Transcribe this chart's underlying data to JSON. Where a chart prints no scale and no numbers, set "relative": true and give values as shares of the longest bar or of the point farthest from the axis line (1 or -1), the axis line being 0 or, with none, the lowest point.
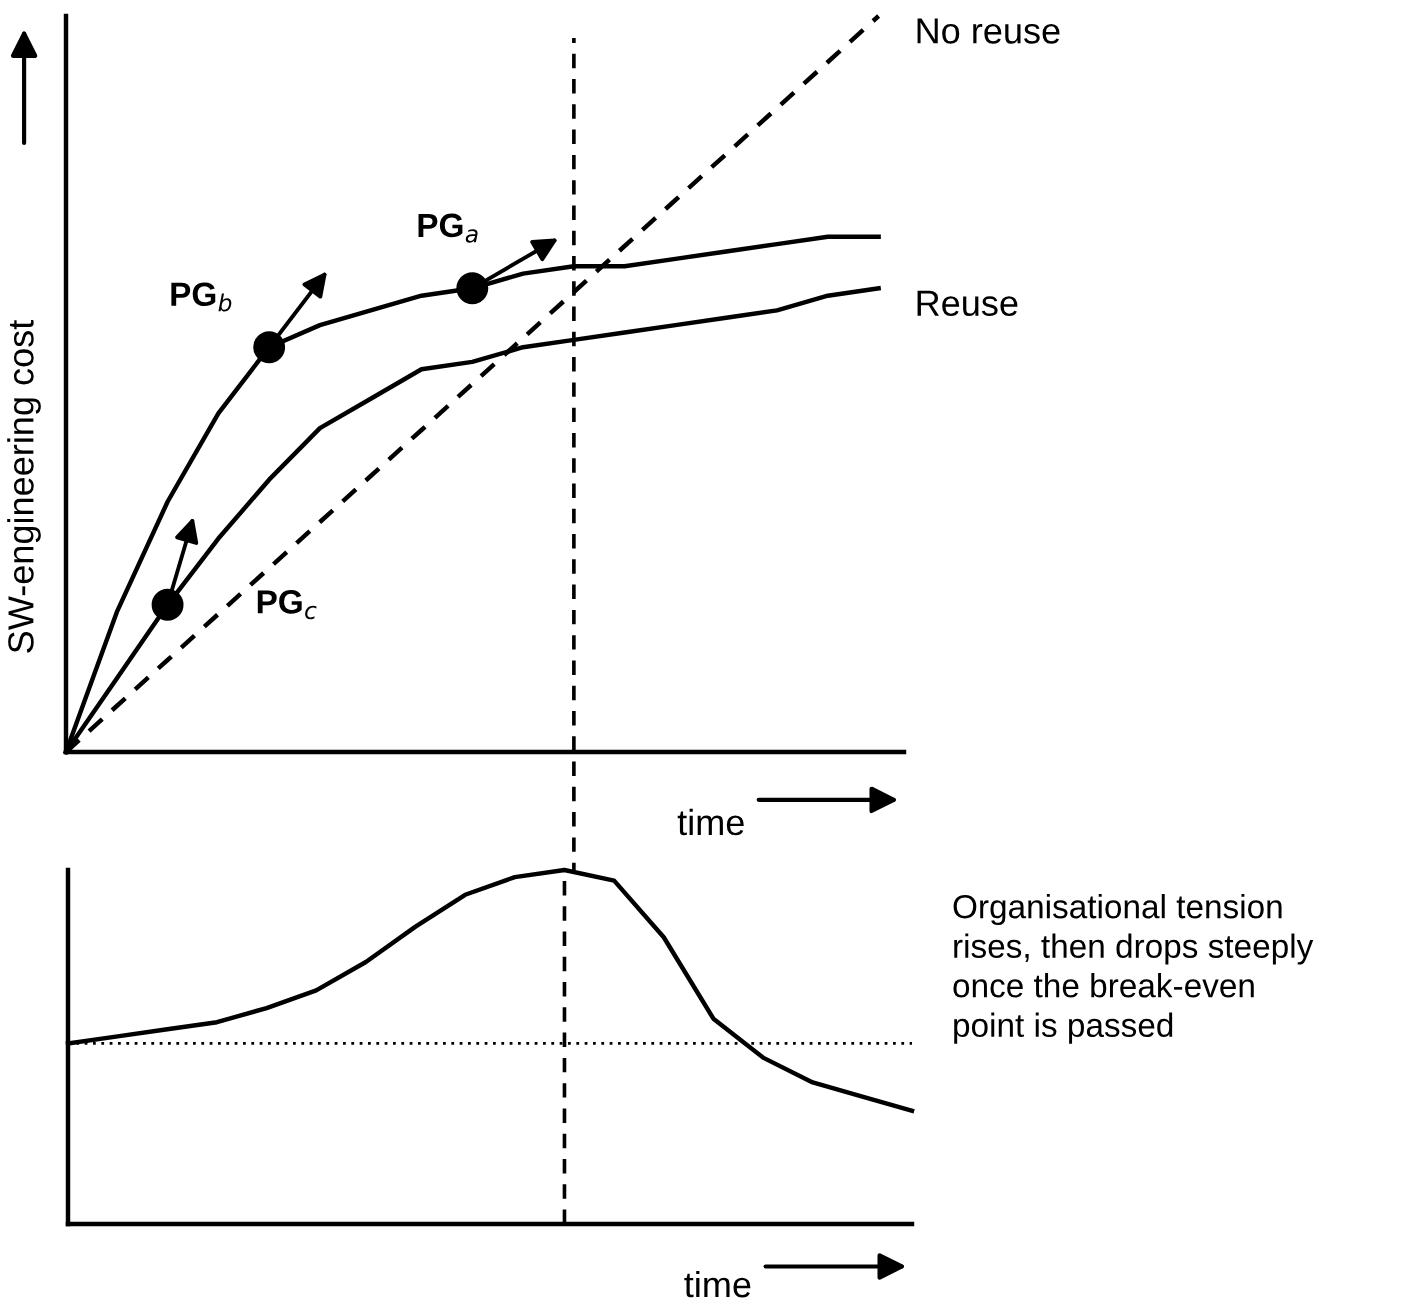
{
  "chart_data": [
    {
      "type": "line",
      "relative": true,
      "xlabel": "time",
      "ylabel": "SW-engineering cost",
      "legend": false,
      "grid": false,
      "categories": [
        null,
        null,
        null,
        null,
        null,
        null,
        null,
        null,
        null,
        null,
        null,
        null,
        null,
        null,
        null,
        null,
        null
      ],
      "series": [
        {
          "name": "No reuse",
          "color": "#000000",
          "line_style": "dashed",
          "values": [
            0,
            0.0625,
            0.125,
            0.1875,
            0.25,
            0.3125,
            0.375,
            0.4375,
            0.5,
            0.5625,
            0.625,
            0.6875,
            0.75,
            0.8125,
            0.875,
            0.9375,
            1
          ]
        },
        {
          "color": "#000000",
          "line_style": "solid",
          "values": [
            0,
            0.19,
            0.34,
            0.46,
            0.55,
            0.58,
            0.6,
            0.62,
            0.63,
            0.65,
            0.66,
            0.66,
            0.67,
            0.68,
            0.69,
            0.7,
            0.7
          ]
        },
        {
          "name": "Reuse",
          "color": "#000000",
          "line_style": "solid",
          "values": [
            0,
            0.1,
            0.2,
            0.29,
            0.37,
            0.44,
            0.48,
            0.52,
            0.53,
            0.55,
            0.56,
            0.57,
            0.58,
            0.59,
            0.6,
            0.62,
            0.63
          ]
        }
      ],
      "annotations": [
        "PG$_{a}$",
        "PG$_{b}$",
        "PG$_{c}$"
      ]
    },
    {
      "type": "line",
      "relative": true,
      "xlabel": "time",
      "legend": false,
      "grid": false,
      "categories": [
        null,
        null,
        null,
        null,
        null,
        null,
        null,
        null,
        null,
        null,
        null,
        null,
        null,
        null,
        null,
        null,
        null,
        null
      ],
      "series": [
        {
          "color": "#000000",
          "line_style": "solid",
          "values": [
            0.51,
            0.53,
            0.55,
            0.57,
            0.61,
            0.66,
            0.74,
            0.84,
            0.93,
            0.98,
            1.0,
            0.97,
            0.81,
            0.58,
            0.47,
            0.4,
            0.36,
            0.32
          ]
        }
      ],
      "ref_lines": [
        {
          "axis": "y",
          "value": 0.51,
          "color": "#000000",
          "line_style": "dotted"
        }
      ],
      "annotations": [
        "Organisational tension\nrises, then drops steeply\nonce the break-even\npoint is passed"
      ]
    }
  ]
}
